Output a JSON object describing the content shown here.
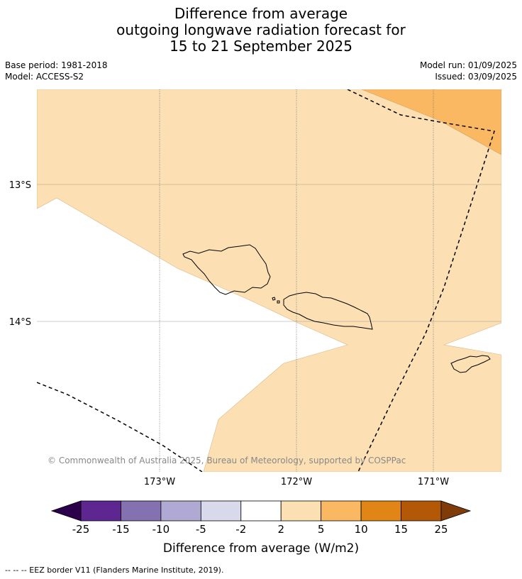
{
  "title": {
    "line1": "Difference from average",
    "line2": "outgoing longwave radiation forecast for",
    "line3": "15 to 21 September 2025"
  },
  "info": {
    "base_period": "Base period: 1981-2018",
    "model": "Model: ACCESS-S2",
    "model_run": "Model run: 01/09/2025",
    "issued": "Issued: 03/09/2025"
  },
  "map": {
    "lat_labels": [
      "13°S",
      "14°S"
    ],
    "lon_labels": [
      "173°W",
      "172°W",
      "171°W"
    ],
    "copyright": "© Commonwealth of Australia 2025, Bureau of Meteorology, supported by COSPPac",
    "regions": [
      {
        "name": "2 to 5",
        "color": "#fce0b4"
      },
      {
        "name": "5 to 10",
        "color": "#fbb862"
      }
    ]
  },
  "colorbar": {
    "ticks": [
      "-25",
      "-15",
      "-10",
      "-5",
      "-2",
      "2",
      "5",
      "10",
      "15",
      "25"
    ],
    "colors": [
      "#5d2690",
      "#8472b0",
      "#b0a9d3",
      "#d9d9ec",
      "#ffffff",
      "#fce0b4",
      "#fbb862",
      "#e08516",
      "#b35806"
    ],
    "under_color": "#2d004b",
    "over_color": "#7f3b08",
    "label": "Difference from average (W/m2)"
  },
  "footer": {
    "legend_text": "--  --  -- EEZ border V11 (Flanders Marine Institute, 2019)."
  }
}
